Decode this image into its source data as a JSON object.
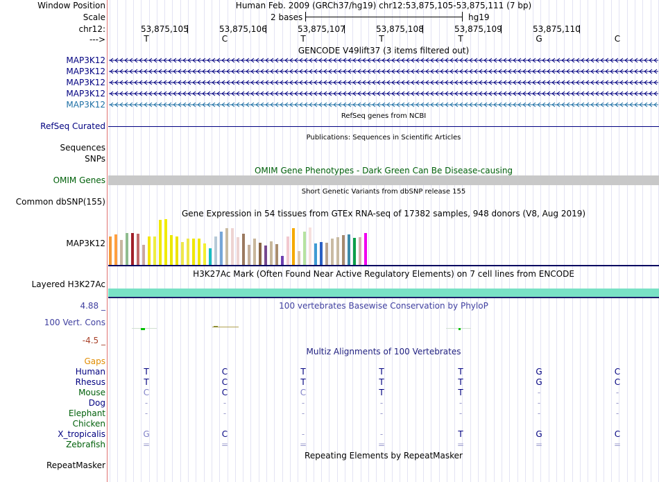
{
  "colors": {
    "navy": "#000080",
    "teal": "#1d6fa5",
    "green": "#00600a",
    "orange": "#e18c00",
    "gutter": "#e07070",
    "omim_bar": "#c8c8c8",
    "h3k_band": "#79e1c5",
    "cons_red": "#a84028",
    "cons_blue": "#4040a0"
  },
  "header": {
    "window_position_label": "Window Position",
    "scale_label": "Scale",
    "chr_label": "chr12:",
    "strand_label": "--->",
    "position_text": "Human Feb. 2009 (GRCh37/hg19)   chr12:53,875,105-53,875,111 (7 bp)",
    "scale_left": "2 bases",
    "scale_right": "hg19",
    "coords": [
      "53,875,105",
      "53,875,106",
      "53,875,107",
      "53,875,108",
      "53,875,109",
      "53,875,110"
    ],
    "bases": [
      "T",
      "C",
      "T",
      "T",
      "T",
      "G",
      "C"
    ]
  },
  "tracks": {
    "gencode": {
      "title": "GENCODE V49lift37 (3 items filtered out)",
      "genes": [
        "MAP3K12",
        "MAP3K12",
        "MAP3K12",
        "MAP3K12",
        "MAP3K12"
      ]
    },
    "refseq": {
      "title": "RefSeq genes from NCBI",
      "label": "RefSeq Curated"
    },
    "publications": {
      "title": "Publications: Sequences in Scientific Articles",
      "labels": [
        "Sequences",
        "SNPs"
      ]
    },
    "omim": {
      "title": "OMIM Gene Phenotypes - Dark Green Can Be Disease-causing",
      "label": "OMIM Genes"
    },
    "dbsnp": {
      "title": "Short Genetic Variants from dbSNP release 155",
      "label": "Common dbSNP(155)"
    },
    "gtex": {
      "title": "Gene Expression in 54 tissues from GTEx RNA-seq of 17382 samples, 948 donors (V8, Aug 2019)",
      "label": "MAP3K12"
    },
    "h3k27ac": {
      "title": "H3K27Ac Mark (Often Found Near Active Regulatory Elements) on 7 cell lines from ENCODE",
      "label": "Layered H3K27Ac"
    },
    "phylop": {
      "title": "100 vertebrates Basewise Conservation by PhyloP",
      "label": "100 Vert. Cons",
      "max": "4.88 _",
      "min": "-4.5 _"
    },
    "multiz": {
      "title": "Multiz Alignments of 100 Vertebrates",
      "gaps_label": "Gaps",
      "species": [
        {
          "name": "Human",
          "bases": [
            "T",
            "C",
            "T",
            "T",
            "T",
            "G",
            "C"
          ]
        },
        {
          "name": "Rhesus",
          "bases": [
            "T",
            "C",
            "T",
            "T",
            "T",
            "G",
            "C"
          ]
        },
        {
          "name": "Mouse",
          "bases": [
            "C",
            "C",
            "C",
            "T",
            "T",
            "-",
            "-"
          ]
        },
        {
          "name": "Dog",
          "bases": [
            "-",
            "-",
            "-",
            "-",
            "-",
            "-",
            "-"
          ]
        },
        {
          "name": "Elephant",
          "bases": [
            "-",
            "-",
            "-",
            "-",
            "-",
            "-",
            "-"
          ]
        },
        {
          "name": "Chicken",
          "bases": [
            "",
            "",
            "",
            "",
            "",
            "",
            ""
          ]
        },
        {
          "name": "X_tropicalis",
          "bases": [
            "G",
            "C",
            "-",
            "-",
            "T",
            "G",
            "C"
          ]
        },
        {
          "name": "Zebrafish",
          "bases": [
            "=",
            "=",
            "=",
            "=",
            "=",
            "=",
            "="
          ]
        }
      ]
    },
    "repeatmasker": {
      "title": "Repeating Elements by RepeatMasker",
      "label": "RepeatMasker"
    }
  },
  "gtex_values": [
    0.62,
    0.66,
    0.55,
    0.7,
    0.7,
    0.68,
    0.44,
    0.62,
    0.62,
    0.98,
    1.0,
    0.65,
    0.62,
    0.5,
    0.57,
    0.57,
    0.57,
    0.47,
    0.36,
    0.62,
    0.73,
    0.8,
    0.8,
    0.6,
    0.68,
    0.44,
    0.57,
    0.49,
    0.42,
    0.51,
    0.46,
    0.2,
    0.62,
    0.8,
    0.31,
    0.73,
    0.82,
    0.47,
    0.5,
    0.49,
    0.58,
    0.6,
    0.65,
    0.66,
    0.59,
    0.6,
    0.69
  ],
  "gtex_colors": [
    "#f39a3a",
    "#ff9f40",
    "#c8b7a1",
    "#8fbc8f",
    "#a0202a",
    "#c26a6a",
    "#c9a7a0",
    "#f5e600",
    "#eeee40",
    "#f0e800",
    "#f0ec00",
    "#ebe800",
    "#eee300",
    "#efe84a",
    "#efe84a",
    "#f0e700",
    "#f0e700",
    "#f3ef30",
    "#17bdc2",
    "#b6c9d8",
    "#76a6d8",
    "#c9bba2",
    "#eed4d2",
    "#eed4d2",
    "#9b7a60",
    "#c5b09a",
    "#c9b79c",
    "#8b6746",
    "#76488f",
    "#c7b79b",
    "#a98d6e",
    "#6d3fb0",
    "#f2c9d0",
    "#f5a900",
    "#d9c6ae",
    "#b6e3a0",
    "#f6e0de",
    "#3e9bd3",
    "#2a5fc4",
    "#b8a390",
    "#c9bba3",
    "#c9bba3",
    "#a68b70",
    "#3d8aaa",
    "#0c9e4a",
    "#d2b2ae",
    "#f000f0"
  ]
}
